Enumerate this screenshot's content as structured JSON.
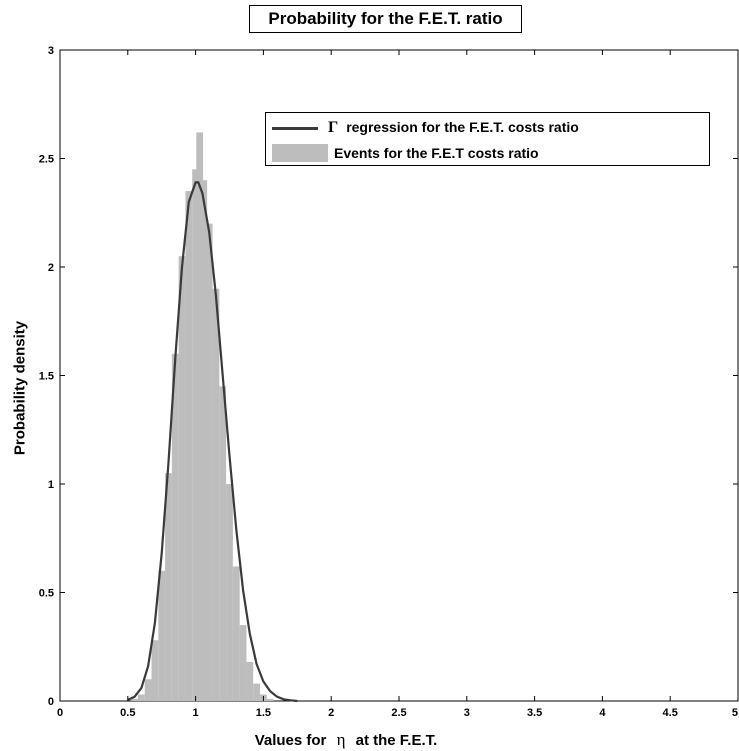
{
  "chart_data": {
    "type": "area",
    "title": "Probability for the F.E.T. ratio",
    "xlabel_prefix": "Values for",
    "xlabel_symbol": "η",
    "xlabel_suffix": "at the F.E.T.",
    "ylabel": "Probability density",
    "xlim": [
      0,
      5
    ],
    "ylim": [
      0,
      3
    ],
    "xticks": [
      0,
      0.5,
      1,
      1.5,
      2,
      2.5,
      3,
      3.5,
      4,
      4.5,
      5
    ],
    "xtick_labels": [
      "0",
      "0.5",
      "1",
      "1.5",
      "2",
      "2.5",
      "3",
      "3.5",
      "4",
      "4.5",
      "5"
    ],
    "yticks": [
      0,
      0.5,
      1,
      1.5,
      2,
      2.5,
      3
    ],
    "ytick_labels": [
      "0",
      "0.5",
      "1",
      "1.5",
      "2",
      "2.5",
      "3"
    ],
    "grid": false,
    "legend_position": "top-right",
    "series": [
      {
        "name": "regression for the F.E.T. costs ratio",
        "legend_symbol": "Γ",
        "kind": "line",
        "color": "#3a3a3a",
        "x": [
          0.5,
          0.55,
          0.6,
          0.65,
          0.7,
          0.75,
          0.8,
          0.85,
          0.9,
          0.95,
          1.0,
          1.02,
          1.05,
          1.1,
          1.15,
          1.2,
          1.25,
          1.3,
          1.35,
          1.4,
          1.45,
          1.5,
          1.55,
          1.6,
          1.65,
          1.7,
          1.75
        ],
        "y": [
          0.005,
          0.02,
          0.06,
          0.16,
          0.36,
          0.68,
          1.1,
          1.58,
          2.0,
          2.3,
          2.39,
          2.39,
          2.34,
          2.16,
          1.87,
          1.5,
          1.13,
          0.79,
          0.51,
          0.31,
          0.17,
          0.09,
          0.045,
          0.02,
          0.008,
          0.003,
          0.0
        ]
      },
      {
        "name": "Events for the F.E.T costs ratio",
        "kind": "histogram",
        "color": "#bdbdbd",
        "x": [
          0.55,
          0.6,
          0.65,
          0.7,
          0.75,
          0.8,
          0.85,
          0.9,
          0.95,
          1.0,
          1.03,
          1.06,
          1.1,
          1.15,
          1.2,
          1.25,
          1.3,
          1.35,
          1.4,
          1.45,
          1.5,
          1.55,
          1.6
        ],
        "y": [
          0.01,
          0.03,
          0.1,
          0.28,
          0.6,
          1.05,
          1.6,
          2.05,
          2.35,
          2.45,
          2.62,
          2.4,
          2.2,
          1.9,
          1.45,
          1.0,
          0.62,
          0.35,
          0.18,
          0.08,
          0.03,
          0.01,
          0.0
        ]
      }
    ]
  }
}
